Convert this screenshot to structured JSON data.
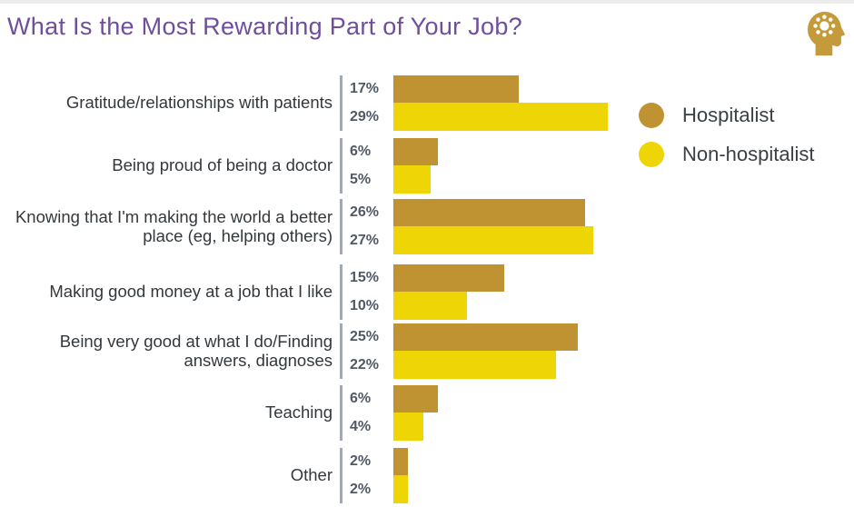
{
  "chart_data": {
    "type": "bar",
    "orientation": "horizontal",
    "title": "What Is the Most Rewarding Part of Your Job?",
    "title_color": "#6f4f9c",
    "value_suffix": "%",
    "xlim": [
      0,
      30
    ],
    "grid": false,
    "legend_position": "right-top",
    "categories": [
      "Gratitude/relationships with patients",
      "Being proud of being a doctor",
      "Knowing that I'm making the world a better place (eg, helping others)",
      "Making good money at a job that I like",
      "Being very good at what I do/Finding answers, diagnoses",
      "Teaching",
      "Other"
    ],
    "series": [
      {
        "name": "Hospitalist",
        "color": "#bf9331",
        "values": [
          17,
          6,
          26,
          15,
          25,
          6,
          2
        ]
      },
      {
        "name": "Non-hospitalist",
        "color": "#edd506",
        "values": [
          29,
          5,
          27,
          10,
          22,
          4,
          2
        ]
      }
    ]
  },
  "icons": {
    "logo": "head-with-gear-icon",
    "logo_color": "#c49a3b",
    "legend_swatch": "circle"
  }
}
